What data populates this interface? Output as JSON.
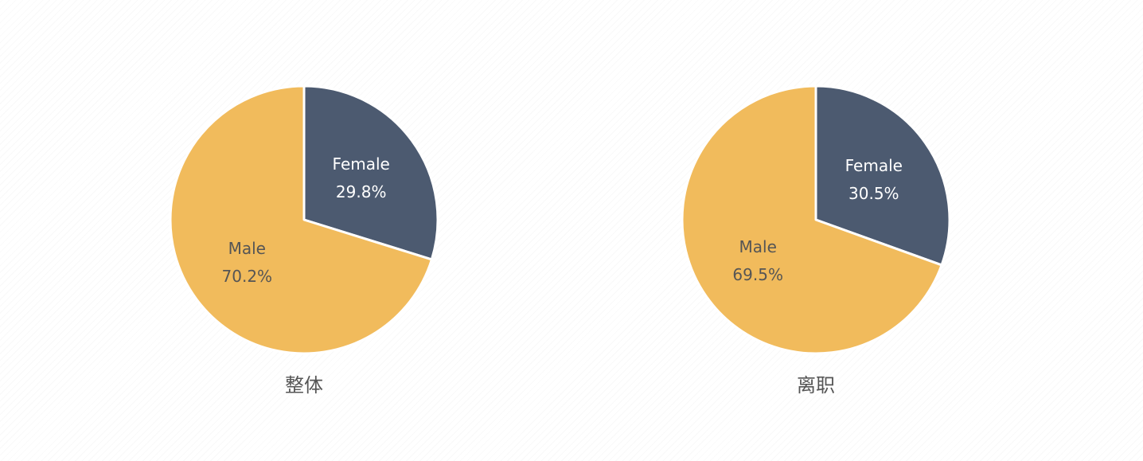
{
  "chart_data": [
    {
      "type": "pie",
      "title": "整体",
      "slices": [
        {
          "label": "Female",
          "value": 29.8,
          "display": "29.8%",
          "color": "#4c5a70",
          "text_color": "#ffffff"
        },
        {
          "label": "Male",
          "value": 70.2,
          "display": "70.2%",
          "color": "#f1bb5c",
          "text_color": "#555555"
        }
      ],
      "start": "12 o'clock",
      "direction": "clockwise"
    },
    {
      "type": "pie",
      "title": "离职",
      "slices": [
        {
          "label": "Female",
          "value": 30.5,
          "display": "30.5%",
          "color": "#4c5a70",
          "text_color": "#ffffff"
        },
        {
          "label": "Male",
          "value": 69.5,
          "display": "69.5%",
          "color": "#f1bb5c",
          "text_color": "#555555"
        }
      ],
      "start": "12 o'clock",
      "direction": "clockwise"
    }
  ]
}
